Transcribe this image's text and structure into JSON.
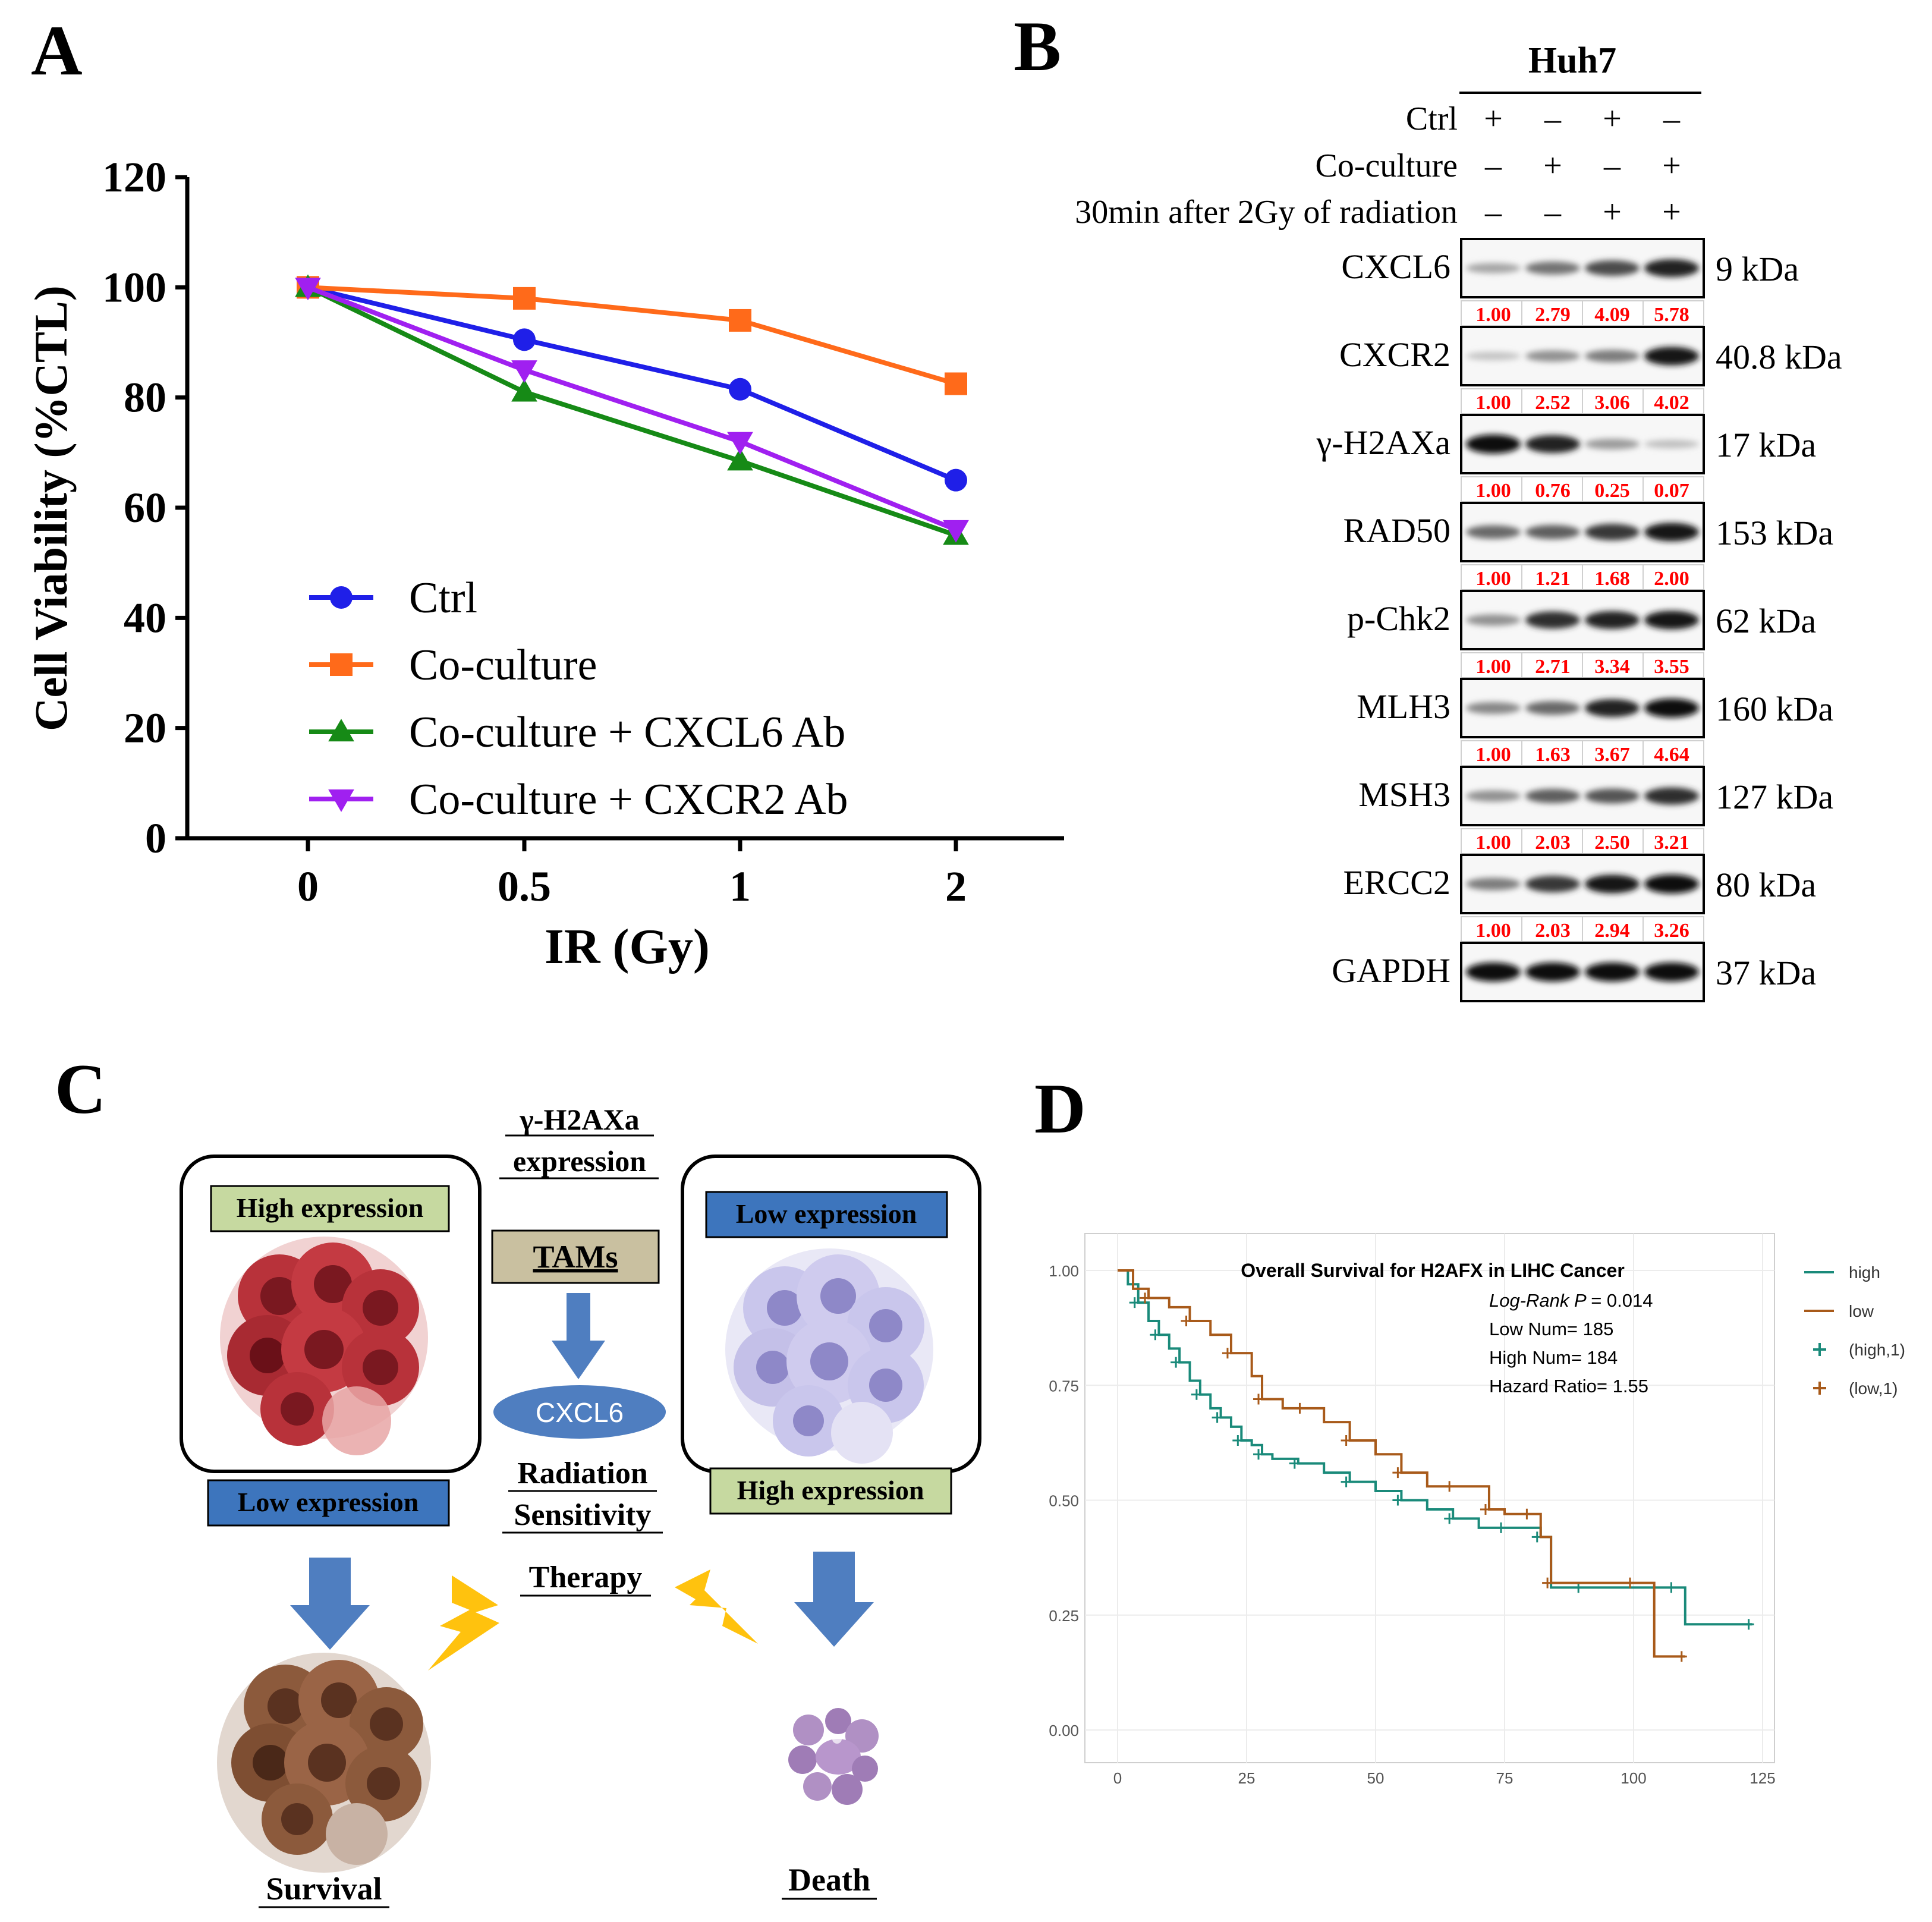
{
  "panel_labels": {
    "a": "A",
    "b": "B",
    "c": "C",
    "d": "D"
  },
  "colors": {
    "ctrl": "#1f1fe8",
    "coculture": "#ff6a1a",
    "cxcl6_ab": "#168a16",
    "cxcr2_ab": "#a020f0",
    "band_value": "#ff0000",
    "survival_high": "#1a8a7a",
    "survival_low": "#a85a1a"
  },
  "panelA": {
    "xlabel": "IR (Gy)",
    "ylabel": "Cell Viability (%CTL)",
    "legend": [
      "Ctrl",
      "Co-culture",
      "Co-culture + CXCL6 Ab",
      "Co-culture + CXCR2 Ab"
    ]
  },
  "panelB": {
    "cell_line": "Huh7",
    "conditions": [
      {
        "label": "Ctrl",
        "signs": [
          "+",
          "–",
          "+",
          "–"
        ]
      },
      {
        "label": "Co-culture",
        "signs": [
          "–",
          "+",
          "–",
          "+"
        ]
      },
      {
        "label": "30min after 2Gy of radiation",
        "signs": [
          "–",
          "–",
          "+",
          "+"
        ]
      }
    ],
    "blots": [
      {
        "name": "CXCL6",
        "kda": "9 kDa",
        "values": [
          "1.00",
          "2.79",
          "4.09",
          "5.78"
        ],
        "intensity": [
          0.25,
          0.5,
          0.7,
          0.9
        ]
      },
      {
        "name": "CXCR2",
        "kda": "40.8 kDa",
        "values": [
          "1.00",
          "2.52",
          "3.06",
          "4.02"
        ],
        "intensity": [
          0.1,
          0.35,
          0.45,
          0.95
        ]
      },
      {
        "name": "γ-H2AXa",
        "kda": "17 kDa",
        "values": [
          "1.00",
          "0.76",
          "0.25",
          "0.07"
        ],
        "intensity": [
          1.0,
          0.9,
          0.3,
          0.12
        ]
      },
      {
        "name": "RAD50",
        "kda": "153 kDa",
        "values": [
          "1.00",
          "1.21",
          "1.68",
          "2.00"
        ],
        "intensity": [
          0.55,
          0.6,
          0.8,
          0.95
        ]
      },
      {
        "name": "p-Chk2",
        "kda": "62 kDa",
        "values": [
          "1.00",
          "2.71",
          "3.34",
          "3.55"
        ],
        "intensity": [
          0.35,
          0.85,
          0.9,
          0.95
        ]
      },
      {
        "name": "MLH3",
        "kda": "160 kDa",
        "values": [
          "1.00",
          "1.63",
          "3.67",
          "4.64"
        ],
        "intensity": [
          0.4,
          0.55,
          0.9,
          1.0
        ]
      },
      {
        "name": "MSH3",
        "kda": "127 kDa",
        "values": [
          "1.00",
          "2.03",
          "2.50",
          "3.21"
        ],
        "intensity": [
          0.35,
          0.6,
          0.65,
          0.85
        ]
      },
      {
        "name": "ERCC2",
        "kda": "80 kDa",
        "values": [
          "1.00",
          "2.03",
          "2.94",
          "3.26"
        ],
        "intensity": [
          0.45,
          0.8,
          0.95,
          1.0
        ]
      },
      {
        "name": "GAPDH",
        "kda": "37 kDa",
        "values": [],
        "intensity": [
          1.0,
          1.0,
          1.0,
          1.0
        ]
      }
    ]
  },
  "panelC": {
    "header_line1": "γ-H2AXa",
    "header_line2": "expression",
    "left_top": "High expression",
    "left_bottom": "Low expression",
    "right_top": "Low expression",
    "right_bottom": "High expression",
    "tams": "TAMs",
    "cxcl6": "CXCL6",
    "radiation_line1": "Radiation",
    "radiation_line2": "Sensitivity",
    "therapy": "Therapy",
    "survival": "Survival",
    "death": "Death"
  },
  "panelD": {
    "title": "Overall Survival for H2AFX in LIHC Cancer",
    "stats": {
      "logrank_label": "Log-Rank P",
      "logrank_value": "= 0.014",
      "low_num": "Low Num= 185",
      "high_num": "High Num= 184",
      "hazard": "Hazard Ratio= 1.55"
    },
    "legend": [
      "high",
      "low",
      "(high,1)",
      "(low,1)"
    ]
  },
  "chart_data": [
    {
      "type": "line",
      "title": "",
      "xlabel": "IR (Gy)",
      "ylabel": "Cell Viability (%CTL)",
      "categories": [
        "0",
        "0.5",
        "1",
        "2"
      ],
      "ylim": [
        0,
        120
      ],
      "yticks": [
        "0",
        "20",
        "40",
        "60",
        "80",
        "100",
        "120"
      ],
      "series": [
        {
          "name": "Ctrl",
          "values": [
            100,
            90.5,
            81.5,
            65
          ]
        },
        {
          "name": "Co-culture",
          "values": [
            100,
            98,
            94,
            82.5
          ]
        },
        {
          "name": "Co-culture + CXCL6 Ab",
          "values": [
            100,
            81,
            68.5,
            55
          ]
        },
        {
          "name": "Co-culture + CXCR2 Ab",
          "values": [
            100,
            85,
            72,
            56
          ]
        }
      ]
    },
    {
      "type": "line",
      "title": "Overall Survival for H2AFX in LIHC Cancer",
      "xlabel": "",
      "ylabel": "",
      "xlim": [
        0,
        125
      ],
      "ylim": [
        0,
        1
      ],
      "xticks": [
        "0",
        "25",
        "50",
        "75",
        "100",
        "125"
      ],
      "yticks": [
        "0.00",
        "0.25",
        "0.50",
        "0.75",
        "1.00"
      ],
      "series": [
        {
          "name": "high",
          "x": [
            0,
            2,
            4,
            6,
            8,
            10,
            12,
            14,
            16,
            18,
            20,
            22,
            24,
            26,
            28,
            30,
            35,
            40,
            45,
            50,
            55,
            60,
            65,
            70,
            75,
            80,
            82,
            84,
            90,
            100,
            108,
            110,
            123
          ],
          "y": [
            1.0,
            0.97,
            0.93,
            0.89,
            0.86,
            0.83,
            0.8,
            0.76,
            0.73,
            0.7,
            0.68,
            0.66,
            0.63,
            0.62,
            0.6,
            0.59,
            0.58,
            0.56,
            0.54,
            0.52,
            0.5,
            0.48,
            0.46,
            0.44,
            0.44,
            0.44,
            0.42,
            0.31,
            0.31,
            0.31,
            0.31,
            0.23,
            0.23
          ]
        },
        {
          "name": "low",
          "x": [
            0,
            3,
            6,
            10,
            14,
            18,
            22,
            26,
            28,
            32,
            36,
            40,
            45,
            50,
            55,
            60,
            65,
            70,
            72,
            75,
            80,
            82,
            84,
            90,
            100,
            104,
            110
          ],
          "y": [
            1.0,
            0.96,
            0.94,
            0.92,
            0.89,
            0.86,
            0.82,
            0.77,
            0.72,
            0.7,
            0.7,
            0.67,
            0.63,
            0.6,
            0.56,
            0.53,
            0.53,
            0.53,
            0.48,
            0.47,
            0.47,
            0.42,
            0.32,
            0.32,
            0.32,
            0.16,
            0.16
          ]
        }
      ]
    }
  ]
}
